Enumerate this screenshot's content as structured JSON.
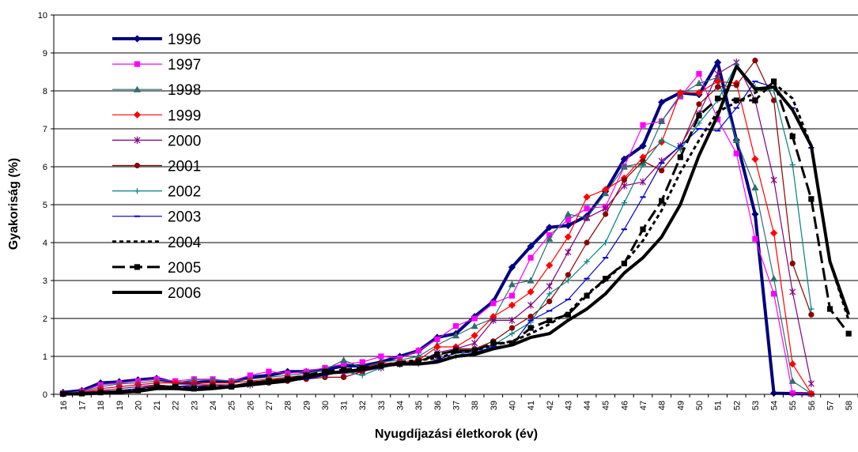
{
  "chart_data": {
    "type": "line",
    "xlabel": "Nyugdíjazási életkorok (év)",
    "ylabel": "Gyakoriság (%)",
    "ylim": [
      0,
      10
    ],
    "yticks": [
      0,
      1,
      2,
      3,
      4,
      5,
      6,
      7,
      8,
      9,
      10
    ],
    "grid": "horizontal",
    "legend_position": "left",
    "categories": [
      "16",
      "17",
      "18",
      "19",
      "20",
      "21",
      "22",
      "23",
      "24",
      "25",
      "26",
      "27",
      "28",
      "29",
      "30",
      "31",
      "32",
      "33",
      "34",
      "35",
      "36",
      "37",
      "38",
      "39",
      "40",
      "41",
      "42",
      "43",
      "44",
      "45",
      "46",
      "47",
      "48",
      "49",
      "50",
      "51",
      "52",
      "53",
      "54",
      "55",
      "56",
      "57",
      "58"
    ],
    "series": [
      {
        "name": "1996",
        "color": "#000080",
        "style": "solid-thick",
        "marker": "diamond",
        "values": [
          0.05,
          0.1,
          0.3,
          0.33,
          0.38,
          0.42,
          0.3,
          0.3,
          0.35,
          0.33,
          0.45,
          0.5,
          0.6,
          0.6,
          0.65,
          0.75,
          0.75,
          0.85,
          1.0,
          1.15,
          1.5,
          1.6,
          2.05,
          2.45,
          3.35,
          3.9,
          4.4,
          4.45,
          4.7,
          5.35,
          6.2,
          6.55,
          7.7,
          7.95,
          7.9,
          8.75,
          6.7,
          4.75,
          0.03,
          0.02,
          0.01,
          null,
          null
        ]
      },
      {
        "name": "1997",
        "color": "#FF00FF",
        "style": "solid",
        "marker": "square",
        "values": [
          0.03,
          0.08,
          0.25,
          0.3,
          0.35,
          0.4,
          0.35,
          0.4,
          0.4,
          0.35,
          0.5,
          0.6,
          0.55,
          0.6,
          0.7,
          0.8,
          0.85,
          1.0,
          0.95,
          1.15,
          1.45,
          1.8,
          2.0,
          2.4,
          2.6,
          3.6,
          4.2,
          4.6,
          4.9,
          4.95,
          6.0,
          7.1,
          7.2,
          7.85,
          8.45,
          7.25,
          6.35,
          4.1,
          2.65,
          0.03,
          0.01,
          null,
          null
        ]
      },
      {
        "name": "1998",
        "color": "#2E6E6E",
        "style": "solid",
        "marker": "triangle",
        "values": [
          0.03,
          0.07,
          0.2,
          0.28,
          0.3,
          0.35,
          0.3,
          0.38,
          0.38,
          0.35,
          0.4,
          0.45,
          0.5,
          0.55,
          0.65,
          0.9,
          0.7,
          0.85,
          0.9,
          1.0,
          1.3,
          1.55,
          1.8,
          2.0,
          2.9,
          3.0,
          4.1,
          4.75,
          4.65,
          5.3,
          6.0,
          6.1,
          7.2,
          7.9,
          8.2,
          8.35,
          6.7,
          5.45,
          3.05,
          0.35,
          0.02,
          null,
          null
        ]
      },
      {
        "name": "1999",
        "color": "#FF0000",
        "style": "solid",
        "marker": "diamond",
        "values": [
          0.02,
          0.05,
          0.15,
          0.2,
          0.25,
          0.3,
          0.3,
          0.3,
          0.3,
          0.3,
          0.35,
          0.4,
          0.45,
          0.5,
          0.55,
          0.6,
          0.7,
          0.8,
          0.85,
          0.9,
          1.25,
          1.25,
          1.55,
          2.05,
          2.35,
          2.7,
          3.4,
          4.15,
          5.2,
          5.4,
          5.7,
          6.25,
          6.65,
          7.95,
          7.95,
          8.25,
          8.2,
          6.2,
          4.25,
          0.8,
          0.02,
          null,
          null
        ]
      },
      {
        "name": "2000",
        "color": "#800080",
        "style": "solid",
        "marker": "star",
        "values": [
          0.02,
          0.05,
          0.1,
          0.15,
          0.2,
          0.25,
          0.2,
          0.25,
          0.25,
          0.25,
          0.25,
          0.35,
          0.4,
          0.5,
          0.55,
          0.55,
          0.6,
          0.7,
          0.8,
          0.85,
          1.1,
          1.2,
          1.35,
          1.95,
          1.95,
          2.35,
          2.85,
          3.75,
          4.65,
          4.9,
          5.5,
          5.6,
          6.15,
          6.55,
          7.4,
          8.45,
          8.75,
          7.75,
          5.65,
          2.7,
          0.28,
          null,
          null
        ]
      },
      {
        "name": "2001",
        "color": "#8B0000",
        "style": "solid",
        "marker": "circle",
        "values": [
          0.01,
          0.03,
          0.08,
          0.1,
          0.15,
          0.25,
          0.2,
          0.2,
          0.25,
          0.2,
          0.3,
          0.3,
          0.35,
          0.4,
          0.45,
          0.45,
          0.6,
          0.8,
          0.8,
          0.9,
          1.0,
          1.2,
          1.2,
          1.4,
          1.75,
          2.05,
          2.45,
          3.15,
          4.0,
          4.75,
          5.65,
          6.15,
          5.9,
          6.5,
          7.65,
          8.1,
          8.15,
          8.8,
          7.75,
          3.45,
          2.1,
          null,
          null
        ]
      },
      {
        "name": "2002",
        "color": "#008080",
        "style": "solid",
        "marker": "plus",
        "values": [
          0.01,
          0.02,
          0.05,
          0.1,
          0.15,
          0.2,
          0.2,
          0.2,
          0.2,
          0.2,
          0.25,
          0.3,
          0.4,
          0.45,
          0.5,
          0.6,
          0.5,
          0.7,
          0.8,
          0.8,
          0.9,
          1.0,
          1.2,
          1.3,
          1.6,
          1.9,
          2.65,
          3.0,
          3.5,
          4.0,
          5.05,
          6.05,
          6.7,
          6.45,
          7.15,
          7.75,
          8.7,
          8.1,
          8.0,
          6.05,
          2.25,
          null,
          null
        ]
      },
      {
        "name": "2003",
        "color": "#0000CD",
        "style": "solid",
        "marker": "dash",
        "values": [
          0.01,
          0.02,
          0.05,
          0.1,
          0.15,
          0.2,
          0.2,
          0.2,
          0.2,
          0.2,
          0.25,
          0.3,
          0.35,
          0.4,
          0.5,
          0.6,
          0.65,
          0.7,
          0.8,
          0.8,
          0.9,
          1.1,
          1.1,
          1.25,
          1.3,
          1.95,
          2.2,
          2.5,
          3.05,
          3.6,
          4.35,
          5.2,
          6.1,
          6.55,
          7.0,
          6.95,
          7.55,
          8.25,
          8.1,
          7.55,
          6.5,
          null,
          null
        ]
      },
      {
        "name": "2004",
        "color": "#000000",
        "style": "dotted",
        "marker": "none",
        "values": [
          0.01,
          0.02,
          0.05,
          0.08,
          0.1,
          0.2,
          0.2,
          0.15,
          0.2,
          0.2,
          0.3,
          0.35,
          0.4,
          0.45,
          0.55,
          0.6,
          0.65,
          0.75,
          0.85,
          0.9,
          0.95,
          1.1,
          1.15,
          1.3,
          1.4,
          1.6,
          1.85,
          2.15,
          2.65,
          3.0,
          3.45,
          4.05,
          4.85,
          5.85,
          6.7,
          7.45,
          7.7,
          7.95,
          8.2,
          7.8,
          6.55,
          3.5,
          1.95
        ]
      },
      {
        "name": "2005",
        "color": "#000000",
        "style": "dashed",
        "marker": "square",
        "values": [
          0.01,
          0.02,
          0.05,
          0.08,
          0.1,
          0.2,
          0.2,
          0.15,
          0.2,
          0.2,
          0.3,
          0.35,
          0.4,
          0.5,
          0.6,
          0.65,
          0.7,
          0.75,
          0.8,
          0.85,
          1.05,
          1.15,
          1.15,
          1.35,
          1.35,
          1.75,
          1.95,
          2.1,
          2.6,
          3.05,
          3.45,
          4.35,
          5.1,
          6.25,
          7.35,
          7.8,
          7.75,
          7.75,
          8.25,
          6.8,
          5.15,
          2.25,
          1.6
        ]
      },
      {
        "name": "2006",
        "color": "#000000",
        "style": "solid-thick",
        "marker": "none",
        "values": [
          0.01,
          0.01,
          0.03,
          0.05,
          0.08,
          0.15,
          0.15,
          0.12,
          0.15,
          0.2,
          0.25,
          0.3,
          0.35,
          0.45,
          0.55,
          0.6,
          0.65,
          0.75,
          0.8,
          0.8,
          0.85,
          1.0,
          1.05,
          1.2,
          1.3,
          1.5,
          1.6,
          1.95,
          2.25,
          2.65,
          3.2,
          3.6,
          4.15,
          5.0,
          6.3,
          7.35,
          8.65,
          8.05,
          8.1,
          7.5,
          6.55,
          3.5,
          2.1
        ]
      }
    ]
  }
}
